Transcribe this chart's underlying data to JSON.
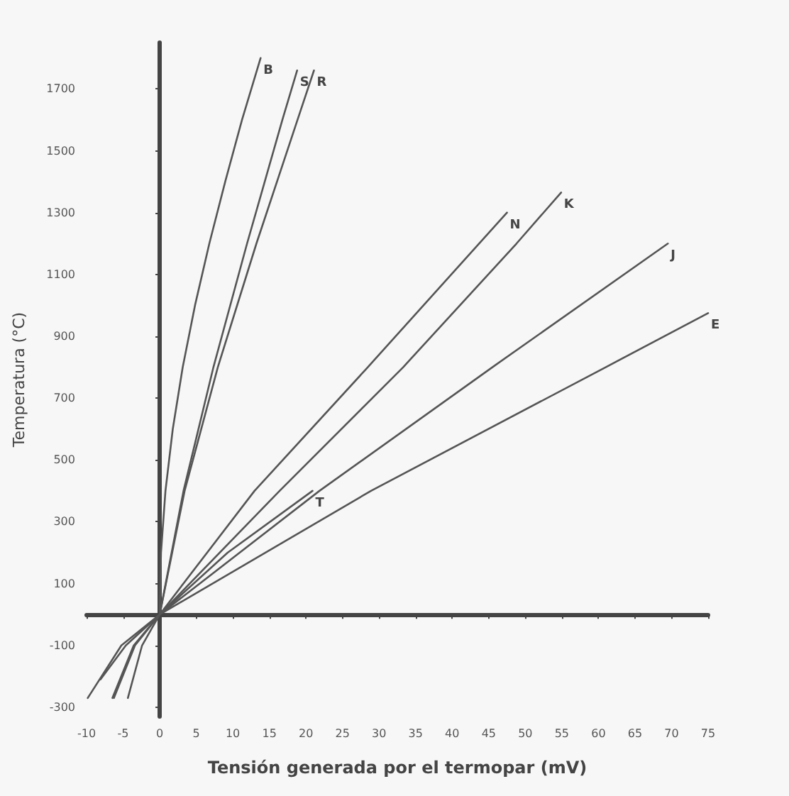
{
  "chart_data": {
    "type": "line",
    "xlabel": "Tensión generada por el termopar (mV)",
    "ylabel": "Temperatura (°C)",
    "xlim": [
      -10,
      75
    ],
    "xticks": [
      -10,
      -5,
      0,
      5,
      10,
      15,
      20,
      25,
      30,
      35,
      40,
      45,
      50,
      55,
      60,
      65,
      70,
      75
    ],
    "ylim": [
      -330,
      1850
    ],
    "yticks": [
      -300,
      -100,
      100,
      300,
      500,
      700,
      900,
      1100,
      1300,
      1500,
      1700
    ],
    "marker": "none",
    "line_style": "solid",
    "series": [
      {
        "name": "B",
        "color": "#555555",
        "x": [
          0,
          0.18,
          0.79,
          1.79,
          3.15,
          4.83,
          6.79,
          8.96,
          11.26,
          13.8
        ],
        "values": [
          0,
          200,
          400,
          600,
          800,
          1000,
          1200,
          1400,
          1600,
          1800
        ]
      },
      {
        "name": "S",
        "color": "#555555",
        "x": [
          0,
          3.26,
          7.35,
          11.95,
          16.78,
          18.8
        ],
        "values": [
          0,
          400,
          800,
          1200,
          1600,
          1760
        ]
      },
      {
        "name": "R",
        "color": "#555555",
        "x": [
          0,
          3.41,
          7.95,
          13.23,
          18.85,
          21.1
        ],
        "values": [
          0,
          400,
          800,
          1200,
          1600,
          1760
        ]
      },
      {
        "name": "N",
        "color": "#555555",
        "x": [
          -4.35,
          -2.41,
          0,
          12.97,
          28.46,
          47.5
        ],
        "values": [
          -270,
          -100,
          0,
          400,
          800,
          1300
        ]
      },
      {
        "name": "K",
        "color": "#555555",
        "x": [
          -6.46,
          -3.55,
          0,
          16.4,
          33.3,
          48.8,
          54.9
        ],
        "values": [
          -270,
          -100,
          0,
          400,
          800,
          1200,
          1365
        ]
      },
      {
        "name": "J",
        "color": "#555555",
        "x": [
          -8.1,
          -4.63,
          0,
          21.85,
          45.5,
          69.5
        ],
        "values": [
          -210,
          -100,
          0,
          400,
          800,
          1200
        ]
      },
      {
        "name": "E",
        "color": "#555555",
        "x": [
          -9.84,
          -5.24,
          0,
          28.9,
          61.0,
          75
        ],
        "values": [
          -270,
          -100,
          0,
          400,
          800,
          975
        ]
      },
      {
        "name": "T",
        "color": "#555555",
        "x": [
          -6.26,
          -3.38,
          0,
          9.29,
          20.9
        ],
        "values": [
          -270,
          -100,
          0,
          200,
          400
        ]
      }
    ]
  }
}
